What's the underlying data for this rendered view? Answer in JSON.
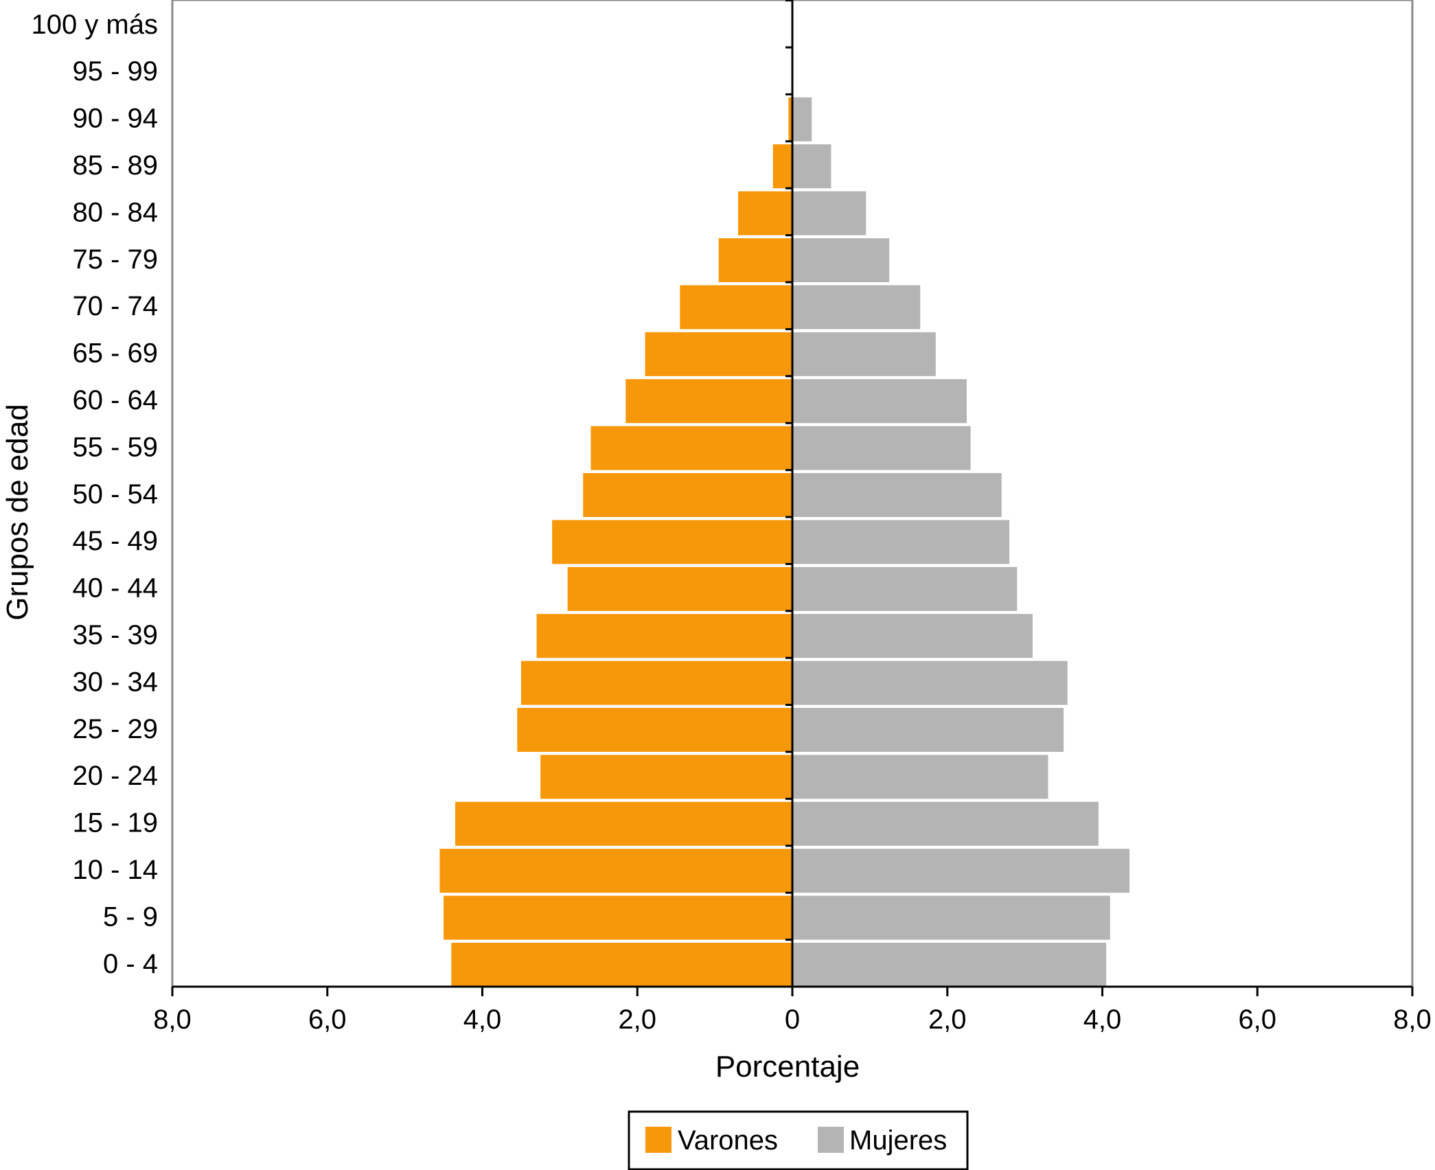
{
  "chart_data": {
    "type": "bar",
    "orientation": "horizontal-pyramid",
    "categories": [
      "0 - 4",
      "5 - 9",
      "10 - 14",
      "15 - 19",
      "20 - 24",
      "25 - 29",
      "30 - 34",
      "35 - 39",
      "40 - 44",
      "45 - 49",
      "50 - 54",
      "55 - 59",
      "60 - 64",
      "65 - 69",
      "70 - 74",
      "75 - 79",
      "80 - 84",
      "85 - 89",
      "90 - 94",
      "95 - 99",
      "100 y más"
    ],
    "series": [
      {
        "name": "Varones",
        "color": "#F7980A",
        "side": "left",
        "values": [
          4.4,
          4.5,
          4.55,
          4.35,
          3.25,
          3.55,
          3.5,
          3.3,
          2.9,
          3.1,
          2.7,
          2.6,
          2.15,
          1.9,
          1.45,
          0.95,
          0.7,
          0.25,
          0.05,
          0.0,
          0.0
        ]
      },
      {
        "name": "Mujeres",
        "color": "#B4B4B4",
        "side": "right",
        "values": [
          4.05,
          4.1,
          4.35,
          3.95,
          3.3,
          3.5,
          3.55,
          3.1,
          2.9,
          2.8,
          2.7,
          2.3,
          2.25,
          1.85,
          1.65,
          1.25,
          0.95,
          0.5,
          0.25,
          0.0,
          0.0
        ]
      }
    ],
    "xticks": [
      "8,0",
      "6,0",
      "4,0",
      "2,0",
      "0",
      "2,0",
      "4,0",
      "6,0",
      "8,0"
    ],
    "xlim": [
      -8,
      8
    ],
    "xlabel": "Porcentaje",
    "ylabel": "Grupos de edad",
    "legend": {
      "position": "bottom-center",
      "entries": [
        "Varones",
        "Mujeres"
      ]
    },
    "grid": false
  }
}
